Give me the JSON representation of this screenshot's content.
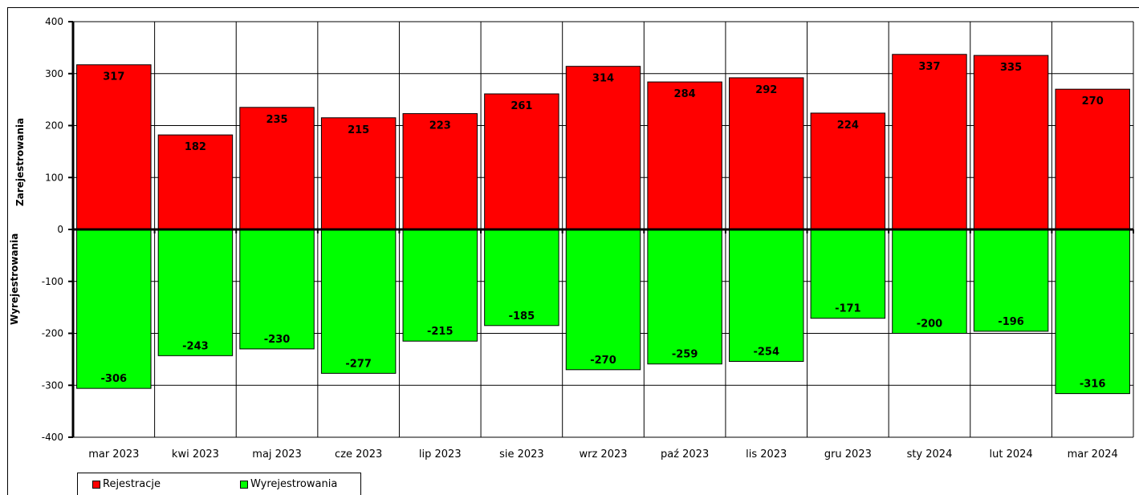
{
  "chart_data": {
    "type": "bar",
    "categories": [
      "mar 2023",
      "kwi 2023",
      "maj 2023",
      "cze 2023",
      "lip 2023",
      "sie 2023",
      "wrz 2023",
      "paź 2023",
      "lis 2023",
      "gru 2023",
      "sty 2024",
      "lut 2024",
      "mar 2024"
    ],
    "series": [
      {
        "name": "Rejestracje",
        "values": [
          317,
          182,
          235,
          215,
          223,
          261,
          314,
          284,
          292,
          224,
          337,
          335,
          270
        ],
        "color": "#ff0000"
      },
      {
        "name": "Wyrejestrowania",
        "values": [
          -306,
          -243,
          -230,
          -277,
          -215,
          -185,
          -270,
          -259,
          -254,
          -171,
          -200,
          -196,
          -316
        ],
        "color": "#00ff00"
      }
    ],
    "ylabel_top": "Zarejestrowania",
    "ylabel_bottom": "Wyrejestrowania",
    "ylim": [
      -400,
      400
    ],
    "yticks": [
      400,
      300,
      200,
      100,
      0,
      -100,
      -200,
      -300,
      -400
    ],
    "grid": true,
    "legend_position": "bottom-left"
  }
}
